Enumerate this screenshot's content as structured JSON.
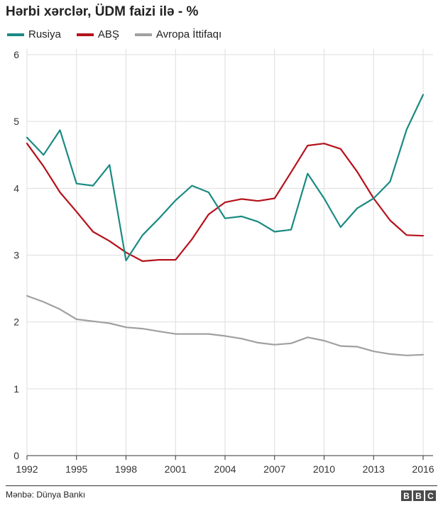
{
  "chart_data": {
    "type": "line",
    "title": "Hərbi xərclər, ÜDM faizi ilə - %",
    "xlabel": "",
    "ylabel": "",
    "x": [
      1992,
      1993,
      1994,
      1995,
      1996,
      1997,
      1998,
      1999,
      2000,
      2001,
      2002,
      2003,
      2004,
      2005,
      2006,
      2007,
      2008,
      2009,
      2010,
      2011,
      2012,
      2013,
      2014,
      2015,
      2016
    ],
    "x_tick_labels": [
      "1992",
      "1995",
      "1998",
      "2001",
      "2004",
      "2007",
      "2010",
      "2013",
      "2016"
    ],
    "y_tick_labels": [
      "0",
      "1",
      "2",
      "3",
      "4",
      "5",
      "6"
    ],
    "ylim": [
      0,
      6
    ],
    "xlim": [
      1992,
      2016
    ],
    "grid": true,
    "legend_position": "top-left",
    "series": [
      {
        "name": "Rusiya",
        "color": "#1a8a82",
        "values": [
          4.76,
          4.5,
          4.87,
          4.07,
          4.04,
          4.35,
          2.92,
          3.3,
          3.55,
          3.82,
          4.04,
          3.94,
          3.55,
          3.58,
          3.5,
          3.35,
          3.38,
          4.22,
          3.85,
          3.42,
          3.7,
          3.85,
          4.1,
          4.88,
          5.4
        ]
      },
      {
        "name": "ABŞ",
        "color": "#b5121b",
        "values": [
          4.67,
          4.33,
          3.94,
          3.65,
          3.35,
          3.21,
          3.04,
          2.91,
          2.93,
          2.93,
          3.24,
          3.61,
          3.79,
          3.84,
          3.81,
          3.85,
          4.24,
          4.64,
          4.67,
          4.59,
          4.25,
          3.85,
          3.52,
          3.3,
          3.29
        ]
      },
      {
        "name": "Avropa İttifaqı",
        "color": "#a0a0a0",
        "values": [
          2.39,
          2.3,
          2.19,
          2.04,
          2.01,
          1.98,
          1.92,
          1.9,
          1.86,
          1.82,
          1.82,
          1.82,
          1.79,
          1.75,
          1.69,
          1.66,
          1.68,
          1.77,
          1.72,
          1.64,
          1.63,
          1.56,
          1.52,
          1.5,
          1.51
        ]
      }
    ],
    "source": "Mənbə: Dünya Bankı",
    "brand": "BBC"
  }
}
